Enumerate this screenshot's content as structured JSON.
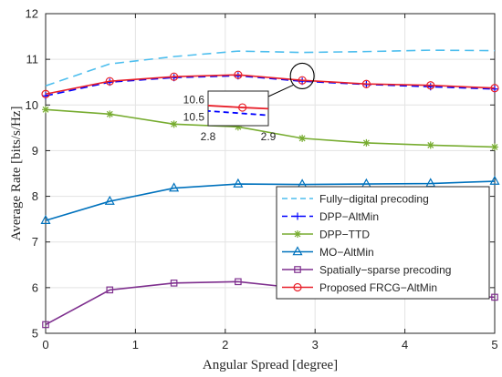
{
  "chart_data": {
    "type": "line",
    "title": "",
    "xlabel": "Angular Spread [degree]",
    "ylabel": "Average Rate [bits/s/Hz]",
    "xlim": [
      0,
      5
    ],
    "ylim": [
      5,
      12
    ],
    "xticks": [
      "0",
      "1",
      "2",
      "3",
      "4",
      "5"
    ],
    "yticks": [
      "5",
      "6",
      "7",
      "8",
      "9",
      "10",
      "11",
      "12"
    ],
    "grid": true,
    "legend_position": "bottom-right",
    "x": [
      0,
      0.714,
      1.429,
      2.143,
      2.857,
      3.571,
      4.286,
      5
    ],
    "series": [
      {
        "name": "Fully−digital precoding",
        "values": [
          10.42,
          10.9,
          11.06,
          11.18,
          11.15,
          11.17,
          11.2,
          11.19
        ],
        "color": "#4DBEEE",
        "dash": "10,6",
        "marker": "none"
      },
      {
        "name": "DPP−AltMin",
        "values": [
          10.2,
          10.5,
          10.6,
          10.64,
          10.52,
          10.45,
          10.4,
          10.35
        ],
        "color": "#0000FF",
        "dash": "8,5",
        "marker": "plus"
      },
      {
        "name": "DPP−TTD",
        "values": [
          9.9,
          9.8,
          9.58,
          9.52,
          9.27,
          9.17,
          9.12,
          9.08
        ],
        "color": "#77AC30",
        "dash": "",
        "marker": "star"
      },
      {
        "name": "MO−AltMin",
        "values": [
          7.47,
          7.89,
          8.18,
          8.27,
          8.26,
          8.27,
          8.28,
          8.33
        ],
        "color": "#0072BD",
        "dash": "",
        "marker": "triangle"
      },
      {
        "name": "Spatially−sparse precoding",
        "values": [
          5.19,
          5.95,
          6.1,
          6.13,
          5.98,
          5.9,
          5.85,
          5.79
        ],
        "color": "#7E2F8E",
        "dash": "",
        "marker": "square"
      },
      {
        "name": "Proposed FRCG−AltMin",
        "values": [
          10.24,
          10.52,
          10.62,
          10.66,
          10.54,
          10.46,
          10.43,
          10.37
        ],
        "color": "#E8202A",
        "dash": "",
        "marker": "circle"
      }
    ],
    "inset": {
      "xlim": [
        2.8,
        2.9
      ],
      "ylim": [
        10.45,
        10.65
      ],
      "xticks": [
        "2.8",
        "2.9"
      ],
      "yticks": [
        "10.6",
        "10.5"
      ],
      "series": [
        {
          "name": "DPP−AltMin",
          "x": [
            2.78,
            2.92
          ],
          "values": [
            10.54,
            10.505
          ]
        },
        {
          "name": "Proposed FRCG−AltMin",
          "x": [
            2.78,
            2.857,
            2.92
          ],
          "values": [
            10.57,
            10.555,
            10.545
          ]
        }
      ],
      "marker_x": 2.857,
      "marker_y": 10.555
    }
  }
}
